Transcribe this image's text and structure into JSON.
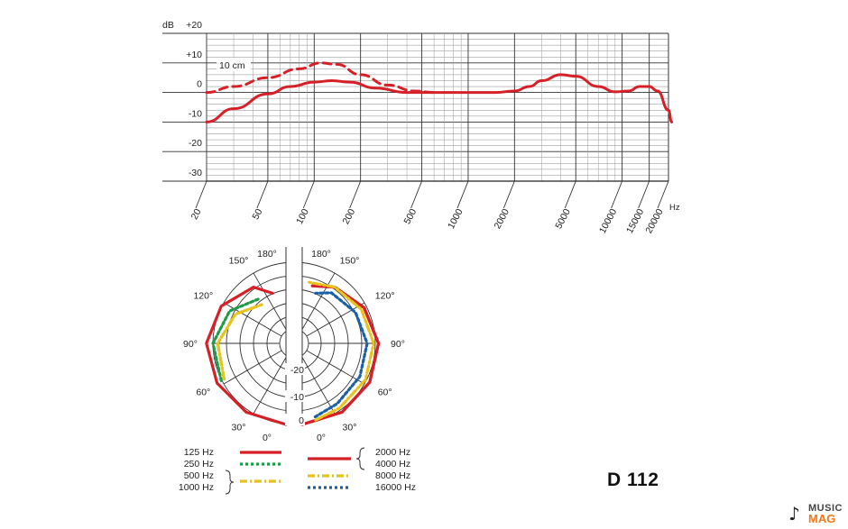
{
  "chart_data": [
    {
      "type": "line",
      "title": "",
      "ylabel": "dB",
      "xlabel": "Hz",
      "x_scale": "log",
      "xlim": [
        20,
        20000
      ],
      "ylim": [
        -30,
        20
      ],
      "x_ticks": [
        "20",
        "50",
        "100",
        "200",
        "500",
        "1000",
        "2000",
        "5000",
        "10000",
        "15000",
        "20000"
      ],
      "y_ticks": [
        "+20",
        "+10",
        "0",
        "-10",
        "-20",
        "-30"
      ],
      "annotation": "10 cm",
      "series": [
        {
          "name": "",
          "style": "solid",
          "color": "#d62028",
          "points": [
            [
              20,
              -10
            ],
            [
              30,
              -5.5
            ],
            [
              50,
              -0.5
            ],
            [
              70,
              2
            ],
            [
              100,
              3.5
            ],
            [
              130,
              4
            ],
            [
              170,
              3.5
            ],
            [
              250,
              1.5
            ],
            [
              400,
              0
            ],
            [
              700,
              0
            ],
            [
              1000,
              0
            ],
            [
              1500,
              0
            ],
            [
              2000,
              0.5
            ],
            [
              2500,
              2
            ],
            [
              3000,
              4
            ],
            [
              4000,
              6
            ],
            [
              5000,
              5.5
            ],
            [
              7000,
              2
            ],
            [
              9000,
              0.2
            ],
            [
              11000,
              0.5
            ],
            [
              13000,
              2
            ],
            [
              15000,
              2
            ],
            [
              17000,
              0.5
            ],
            [
              20000,
              -6
            ],
            [
              21000,
              -10
            ]
          ]
        },
        {
          "name": "10 cm",
          "style": "dashed",
          "color": "#d62028",
          "points": [
            [
              20,
              0
            ],
            [
              30,
              2
            ],
            [
              50,
              5
            ],
            [
              80,
              8
            ],
            [
              110,
              10
            ],
            [
              140,
              9.5
            ],
            [
              200,
              6
            ],
            [
              300,
              2.5
            ],
            [
              450,
              0.5
            ],
            [
              600,
              0
            ]
          ]
        }
      ]
    },
    {
      "type": "polar",
      "title": "",
      "rings_db": [
        "0",
        "-10",
        "-20"
      ],
      "angle_labels": [
        "180°",
        "150°",
        "120°",
        "90°",
        "60°",
        "30°",
        "0°"
      ],
      "left_half": [
        {
          "name": "125 Hz",
          "color": "#d62028",
          "style": "solid",
          "db": [
            [
              0,
              0
            ],
            [
              30,
              -0.5
            ],
            [
              60,
              -0.5
            ],
            [
              90,
              -0.5
            ],
            [
              120,
              -2
            ],
            [
              150,
              -5
            ],
            [
              165,
              -9
            ]
          ]
        },
        {
          "name": "250 Hz",
          "color": "#1e9a48",
          "style": "dotted",
          "db": [
            [
              60,
              -2
            ],
            [
              90,
              -2.5
            ],
            [
              120,
              -5
            ],
            [
              150,
              -9
            ]
          ]
        },
        {
          "name": "500 Hz",
          "color": "#e8c21d",
          "style": "dashdot",
          "db": [
            [
              60,
              -3
            ],
            [
              90,
              -4
            ],
            [
              120,
              -7
            ],
            [
              150,
              -11
            ]
          ]
        },
        {
          "name": "1000 Hz",
          "color": "#e8c21d",
          "style": "dashdot",
          "db": [
            [
              60,
              -3
            ],
            [
              90,
              -4
            ],
            [
              120,
              -7
            ],
            [
              150,
              -11
            ]
          ]
        }
      ],
      "right_half": [
        {
          "name": "2000 Hz",
          "color": "#d62028",
          "style": "solid",
          "db": [
            [
              0,
              0
            ],
            [
              30,
              -0.5
            ],
            [
              60,
              -1
            ],
            [
              90,
              -1.5
            ],
            [
              120,
              -3
            ],
            [
              150,
              -5
            ],
            [
              170,
              -7
            ]
          ]
        },
        {
          "name": "4000 Hz",
          "color": "#d62028",
          "style": "solid",
          "db": [
            [
              0,
              0
            ],
            [
              30,
              -0.5
            ],
            [
              60,
              -1
            ],
            [
              90,
              -1.5
            ],
            [
              120,
              -3
            ],
            [
              150,
              -5
            ],
            [
              170,
              -7
            ]
          ]
        },
        {
          "name": "8000 Hz",
          "color": "#e8c21d",
          "style": "dashdot",
          "db": [
            [
              10,
              -1
            ],
            [
              30,
              -2
            ],
            [
              60,
              -2.5
            ],
            [
              90,
              -3
            ],
            [
              120,
              -4
            ],
            [
              150,
              -5
            ],
            [
              175,
              -6
            ]
          ]
        },
        {
          "name": "16000 Hz",
          "color": "#1a5fa8",
          "style": "dotted",
          "db": [
            [
              10,
              -2
            ],
            [
              30,
              -3.5
            ],
            [
              60,
              -4.5
            ],
            [
              90,
              -5
            ],
            [
              120,
              -6
            ],
            [
              150,
              -7
            ],
            [
              165,
              -9
            ]
          ]
        }
      ]
    }
  ],
  "legend": {
    "left": [
      "125 Hz",
      "250 Hz",
      "500 Hz",
      "1000 Hz"
    ],
    "right": [
      "2000 Hz",
      "4000 Hz",
      "8000 Hz",
      "16000 Hz"
    ]
  },
  "model": "D 112",
  "watermark": {
    "line1": "MUSIC",
    "line2": "MAG"
  }
}
